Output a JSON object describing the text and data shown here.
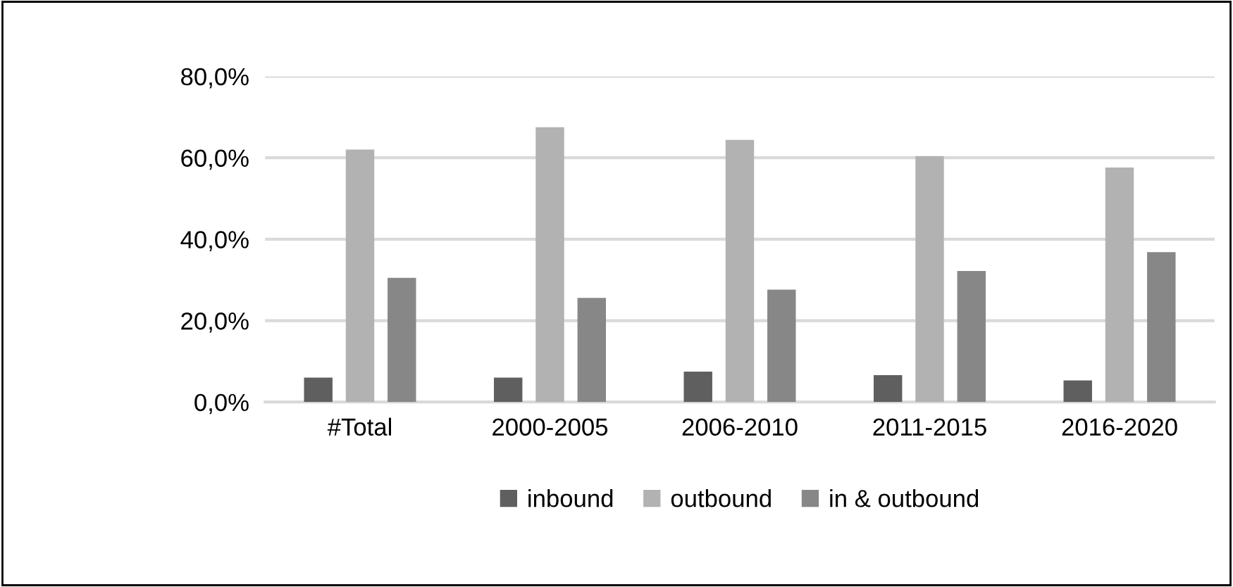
{
  "chart_data": {
    "type": "bar",
    "categories": [
      "#Total",
      "2000-2005",
      "2006-2010",
      "2011-2015",
      "2016-2020"
    ],
    "series": [
      {
        "name": "inbound",
        "color": "#5f5f5f",
        "values": [
          6.0,
          6.0,
          7.5,
          6.6,
          5.3
        ]
      },
      {
        "name": "outbound",
        "color": "#b2b2b2",
        "values": [
          62.0,
          67.5,
          64.4,
          60.4,
          57.6
        ]
      },
      {
        "name": "in & outbound",
        "color": "#878787",
        "values": [
          30.5,
          25.6,
          27.6,
          32.2,
          36.8
        ]
      }
    ],
    "ylim": [
      0,
      80
    ],
    "yticks": [
      {
        "value": 0,
        "label": "0,0%"
      },
      {
        "value": 20,
        "label": "20,0%"
      },
      {
        "value": 40,
        "label": "40,0%"
      },
      {
        "value": 60,
        "label": "60,0%"
      },
      {
        "value": 80,
        "label": "80,0%"
      }
    ],
    "grid": "y",
    "legend": "bottom"
  }
}
